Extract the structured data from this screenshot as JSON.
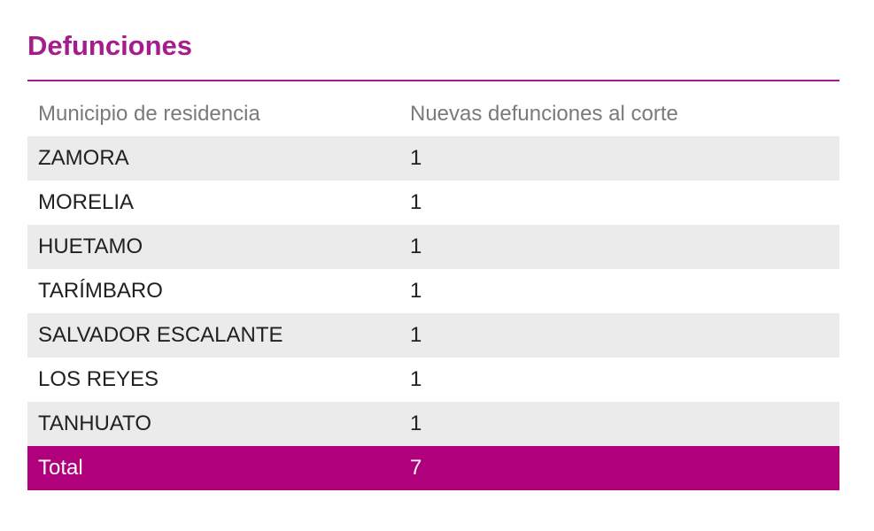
{
  "title": "Defunciones",
  "colors": {
    "accent": "#a51c8c",
    "total_bg": "#b1007c",
    "row_shade": "#ebebeb",
    "header_text": "#7a7a7a"
  },
  "table": {
    "headers": {
      "municipio": "Municipio de residencia",
      "nuevas": "Nuevas defunciones al corte"
    },
    "rows": [
      {
        "municipio": "ZAMORA",
        "nuevas": "1"
      },
      {
        "municipio": "MORELIA",
        "nuevas": "1"
      },
      {
        "municipio": "HUETAMO",
        "nuevas": "1"
      },
      {
        "municipio": "TARÍMBARO",
        "nuevas": "1"
      },
      {
        "municipio": "SALVADOR ESCALANTE",
        "nuevas": "1"
      },
      {
        "municipio": "LOS REYES",
        "nuevas": "1"
      },
      {
        "municipio": "TANHUATO",
        "nuevas": "1"
      }
    ],
    "total": {
      "label": "Total",
      "value": "7"
    }
  }
}
